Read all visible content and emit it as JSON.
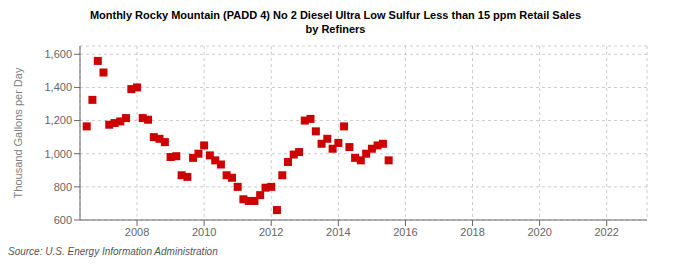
{
  "chart_data": {
    "type": "scatter",
    "title": "Monthly Rocky Mountain (PADD 4) No 2 Diesel Ultra Low Sulfur Less than 15 ppm Retail Sales\nby Refiners",
    "y_label": "Thousand Gallons per Day",
    "source": "Source: U.S. Energy Information Administration",
    "color": "#cc0000",
    "marker": "square",
    "grid": true,
    "xlim": [
      2006.3,
      2023.2
    ],
    "xticks": [
      2008,
      2010,
      2012,
      2014,
      2016,
      2018,
      2020,
      2022
    ],
    "ylim": [
      600,
      1650
    ],
    "yticks": [
      600,
      800,
      {
        "value": 1000,
        "label": "1,000"
      },
      {
        "value": 1200,
        "label": "1,200"
      },
      {
        "value": 1400,
        "label": "1,400"
      },
      {
        "value": 1600,
        "label": "1,600"
      }
    ],
    "x": [
      2006.5,
      2006.67,
      2006.83,
      2007.0,
      2007.17,
      2007.33,
      2007.5,
      2007.67,
      2007.83,
      2008.0,
      2008.17,
      2008.33,
      2008.5,
      2008.67,
      2008.83,
      2009.0,
      2009.17,
      2009.33,
      2009.5,
      2009.67,
      2009.83,
      2010.0,
      2010.17,
      2010.33,
      2010.5,
      2010.67,
      2010.83,
      2011.0,
      2011.17,
      2011.33,
      2011.5,
      2011.67,
      2011.83,
      2012.0,
      2012.17,
      2012.33,
      2012.5,
      2012.67,
      2012.83,
      2013.0,
      2013.17,
      2013.33,
      2013.5,
      2013.67,
      2013.83,
      2014.0,
      2014.17,
      2014.33,
      2014.5,
      2014.67,
      2014.83,
      2015.0,
      2015.17,
      2015.33,
      2015.5
    ],
    "values": [
      1165,
      1325,
      1560,
      1490,
      1175,
      1185,
      1195,
      1215,
      1390,
      1400,
      1215,
      1205,
      1100,
      1090,
      1070,
      980,
      985,
      870,
      860,
      975,
      1000,
      1050,
      990,
      960,
      935,
      870,
      855,
      800,
      725,
      715,
      715,
      750,
      795,
      800,
      660,
      870,
      950,
      995,
      1010,
      1200,
      1210,
      1135,
      1060,
      1090,
      1030,
      1065,
      1165,
      1040,
      975,
      960,
      1000,
      1030,
      1050,
      1060,
      960
    ]
  }
}
